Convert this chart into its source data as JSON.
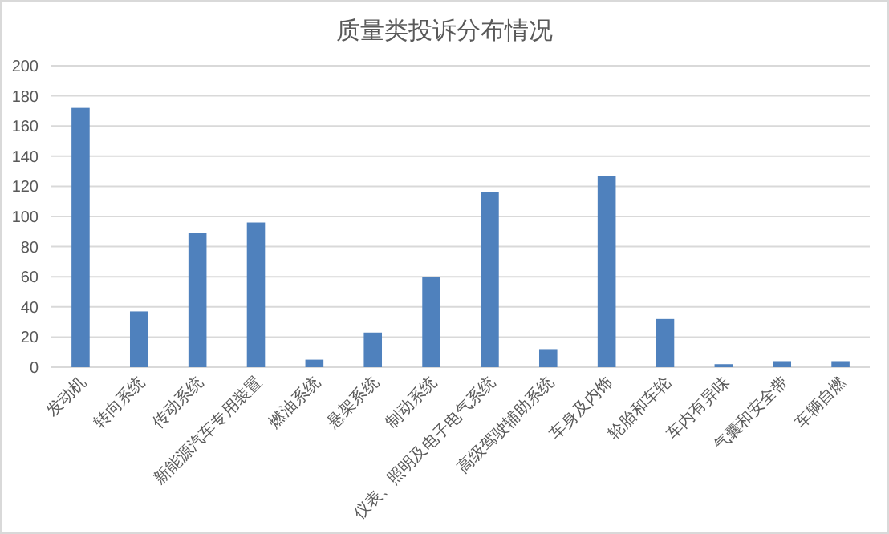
{
  "chart_data": {
    "type": "bar",
    "title": "质量类投诉分布情况",
    "categories": [
      "发动机",
      "转向系统",
      "传动系统",
      "新能源汽车专用装置",
      "燃油系统",
      "悬架系统",
      "制动系统",
      "仪表、照明及电子电气系统",
      "高级驾驶辅助系统",
      "车身及内饰",
      "轮胎和车轮",
      "车内有异味",
      "气囊和安全带",
      "车辆自燃"
    ],
    "values": [
      172,
      37,
      89,
      96,
      5,
      23,
      60,
      116,
      12,
      127,
      32,
      2,
      4,
      4
    ],
    "color": "#4f81bd",
    "ylim": [
      0,
      200
    ],
    "yticks": [
      0,
      20,
      40,
      60,
      80,
      100,
      120,
      140,
      160,
      180,
      200
    ],
    "grid": "y"
  }
}
